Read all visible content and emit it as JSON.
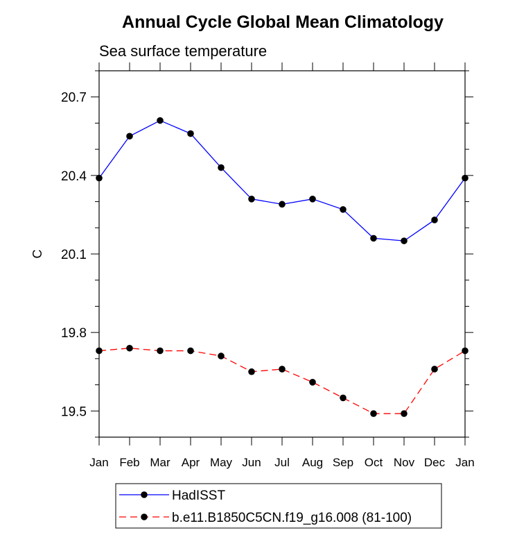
{
  "chart_data": {
    "type": "line",
    "title": "Annual Cycle Global Mean Climatology",
    "subtitle": "Sea surface temperature",
    "xlabel": "",
    "ylabel": "C",
    "categories": [
      "Jan",
      "Feb",
      "Mar",
      "Apr",
      "May",
      "Jun",
      "Jul",
      "Aug",
      "Sep",
      "Oct",
      "Nov",
      "Dec",
      "Jan"
    ],
    "ylim": [
      19.4,
      20.8
    ],
    "yticks": [
      "19.5",
      "19.8",
      "20.1",
      "20.4",
      "20.7"
    ],
    "series": [
      {
        "name": "HadISST",
        "color": "#0000ff",
        "dash": "solid",
        "values": [
          20.39,
          20.55,
          20.61,
          20.56,
          20.43,
          20.31,
          20.29,
          20.31,
          20.27,
          20.16,
          20.15,
          20.23,
          20.39
        ]
      },
      {
        "name": "b.e11.B1850C5CN.f19_g16.008 (81-100)",
        "color": "#ff0000",
        "dash": "dashed",
        "values": [
          19.73,
          19.74,
          19.73,
          19.73,
          19.71,
          19.65,
          19.66,
          19.61,
          19.55,
          19.49,
          19.49,
          19.66,
          19.73
        ]
      }
    ],
    "legend_position": "bottom",
    "grid": false
  }
}
